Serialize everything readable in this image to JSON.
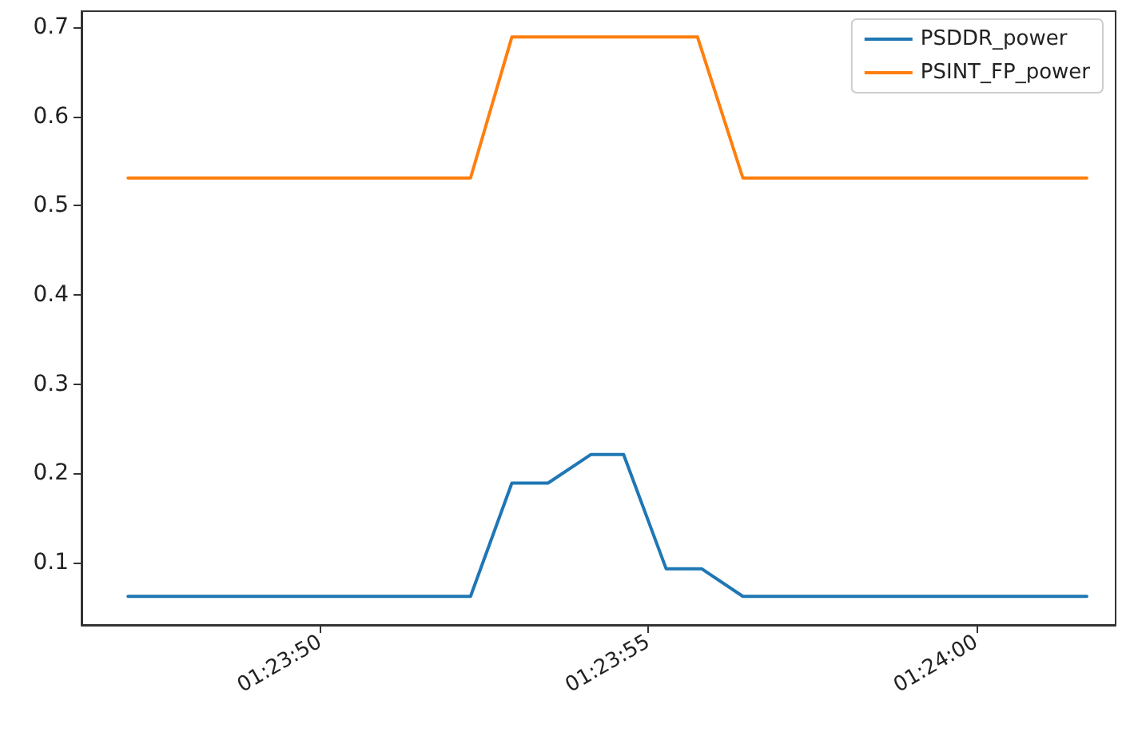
{
  "chart_data": {
    "type": "line",
    "series": [
      {
        "name": "PSDDR_power",
        "color": "#1f77b4",
        "x": [
          1.396408,
          1.397858,
          1.398033,
          1.398186,
          1.398367,
          1.398506,
          1.398686,
          1.398836,
          1.399011,
          1.400467
        ],
        "values": [
          0.062,
          0.062,
          0.189,
          0.189,
          0.221,
          0.221,
          0.093,
          0.093,
          0.062,
          0.062
        ]
      },
      {
        "name": "PSINT_FP_power",
        "color": "#ff7f0e",
        "x": [
          1.396408,
          1.397858,
          1.398033,
          1.398819,
          1.399011,
          1.400467
        ],
        "values": [
          0.531,
          0.531,
          0.689,
          0.689,
          0.531,
          0.531
        ]
      }
    ],
    "xlim": [
      1.396211,
      1.400589
    ],
    "xticks": [
      {
        "value": 1.397222,
        "label": "01:23:50"
      },
      {
        "value": 1.398611,
        "label": "01:23:55"
      },
      {
        "value": 1.4,
        "label": "01:24:00"
      }
    ],
    "ylim": [
      0.03,
      0.718
    ],
    "yticks": [
      0.1,
      0.2,
      0.3,
      0.4,
      0.5,
      0.6,
      0.7
    ],
    "grid": false,
    "legend": "top right",
    "marker": "none",
    "line_style": "solid"
  }
}
